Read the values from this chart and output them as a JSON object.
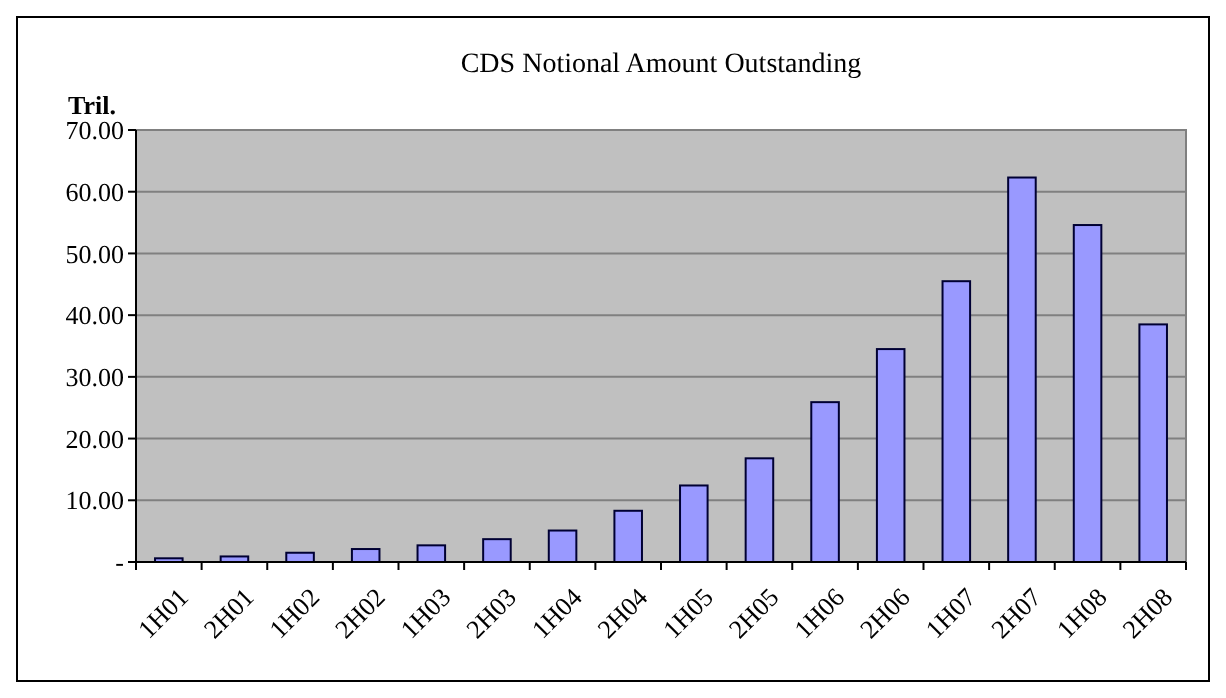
{
  "chart_data": {
    "type": "bar",
    "title": "CDS Notional Amount Outstanding",
    "ylabel": "Tril.",
    "categories": [
      "1H01",
      "2H01",
      "1H02",
      "2H02",
      "1H03",
      "2H03",
      "1H04",
      "2H04",
      "1H05",
      "2H05",
      "1H06",
      "2H06",
      "1H07",
      "2H07",
      "1H08",
      "2H08"
    ],
    "values": [
      0.6,
      0.9,
      1.5,
      2.1,
      2.7,
      3.7,
      5.1,
      8.3,
      12.4,
      16.8,
      25.9,
      34.5,
      45.5,
      62.3,
      54.6,
      38.5
    ],
    "color": "#9999ff",
    "ylim": [
      0,
      70
    ],
    "yticks": [
      {
        "value": 0,
        "label": "-"
      },
      {
        "value": 10,
        "label": "10.00"
      },
      {
        "value": 20,
        "label": "20.00"
      },
      {
        "value": 30,
        "label": "30.00"
      },
      {
        "value": 40,
        "label": "40.00"
      },
      {
        "value": 50,
        "label": "50.00"
      },
      {
        "value": 60,
        "label": "60.00"
      },
      {
        "value": 70,
        "label": "70.00"
      }
    ],
    "grid": "y"
  }
}
